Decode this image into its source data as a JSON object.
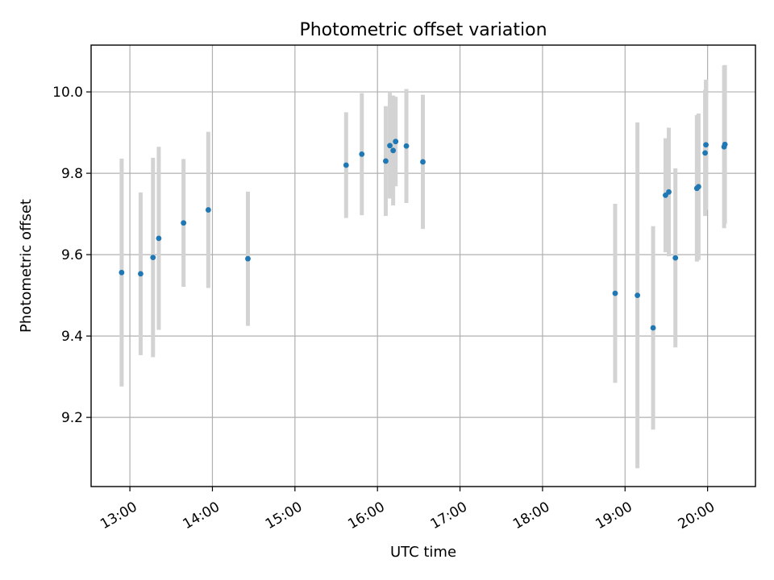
{
  "chart_data": {
    "type": "scatter",
    "title": "Photometric offset variation",
    "xlabel": "UTC time",
    "ylabel": "Photometric offset",
    "x_unit": "hours UTC",
    "xlim": [
      12.53,
      20.58
    ],
    "ylim": [
      9.03,
      10.115
    ],
    "x_ticks": [
      13,
      14,
      15,
      16,
      17,
      18,
      19,
      20
    ],
    "x_tick_labels": [
      "13:00",
      "14:00",
      "15:00",
      "16:00",
      "17:00",
      "18:00",
      "19:00",
      "20:00"
    ],
    "y_ticks": [
      9.2,
      9.4,
      9.6,
      9.8,
      10.0
    ],
    "y_tick_labels": [
      "9.2",
      "9.4",
      "9.6",
      "9.8",
      "10.0"
    ],
    "grid": true,
    "marker_color": "#1f77b4",
    "errorbar_color": "#d3d3d3",
    "points": [
      {
        "x": 12.9,
        "y": 9.556,
        "err": 0.28
      },
      {
        "x": 13.13,
        "y": 9.553,
        "err": 0.2
      },
      {
        "x": 13.28,
        "y": 9.593,
        "err": 0.245
      },
      {
        "x": 13.35,
        "y": 9.64,
        "err": 0.225
      },
      {
        "x": 13.65,
        "y": 9.678,
        "err": 0.157
      },
      {
        "x": 13.95,
        "y": 9.71,
        "err": 0.192
      },
      {
        "x": 14.43,
        "y": 9.59,
        "err": 0.165
      },
      {
        "x": 15.62,
        "y": 9.82,
        "err": 0.13
      },
      {
        "x": 15.81,
        "y": 9.847,
        "err": 0.15
      },
      {
        "x": 16.1,
        "y": 9.83,
        "err": 0.135
      },
      {
        "x": 16.15,
        "y": 9.868,
        "err": 0.13
      },
      {
        "x": 16.19,
        "y": 9.856,
        "err": 0.135
      },
      {
        "x": 16.22,
        "y": 9.878,
        "err": 0.11
      },
      {
        "x": 16.35,
        "y": 9.867,
        "err": 0.14
      },
      {
        "x": 16.55,
        "y": 9.828,
        "err": 0.165
      },
      {
        "x": 18.88,
        "y": 9.505,
        "err": 0.22
      },
      {
        "x": 19.15,
        "y": 9.5,
        "err": 0.425
      },
      {
        "x": 19.34,
        "y": 9.42,
        "err": 0.25
      },
      {
        "x": 19.49,
        "y": 9.746,
        "err": 0.14
      },
      {
        "x": 19.53,
        "y": 9.754,
        "err": 0.158
      },
      {
        "x": 19.61,
        "y": 9.592,
        "err": 0.22
      },
      {
        "x": 19.87,
        "y": 9.763,
        "err": 0.18
      },
      {
        "x": 19.89,
        "y": 9.767,
        "err": 0.18
      },
      {
        "x": 19.97,
        "y": 9.85,
        "err": 0.155
      },
      {
        "x": 19.98,
        "y": 9.87,
        "err": 0.16
      },
      {
        "x": 20.2,
        "y": 9.865,
        "err": 0.2
      },
      {
        "x": 20.21,
        "y": 9.871,
        "err": 0.195
      }
    ]
  }
}
